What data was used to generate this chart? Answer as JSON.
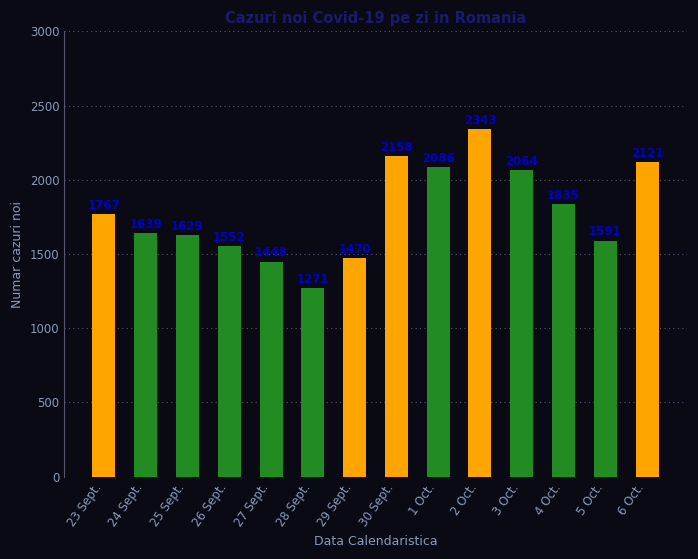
{
  "title": "Cazuri noi Covid-19 pe zi in Romania",
  "xlabel": "Data Calendaristica",
  "ylabel": "Numar cazuri noi",
  "categories": [
    "23 Sept.",
    "24 Sept.",
    "25 Sept.",
    "26 Sept.",
    "27 Sept.",
    "28 Sept.",
    "29 Sept.",
    "30 Sept.",
    "1 Oct.",
    "2 Oct.",
    "3 Oct.",
    "4 Oct.",
    "5 Oct.",
    "6 Oct."
  ],
  "values": [
    1767,
    1639,
    1629,
    1552,
    1448,
    1271,
    1470,
    2158,
    2086,
    2343,
    2064,
    1835,
    1591,
    2121
  ],
  "colors": [
    "#FFA500",
    "#228B22",
    "#228B22",
    "#228B22",
    "#228B22",
    "#228B22",
    "#FFA500",
    "#FFA500",
    "#228B22",
    "#FFA500",
    "#228B22",
    "#228B22",
    "#228B22",
    "#FFA500"
  ],
  "ylim": [
    0,
    3000
  ],
  "yticks": [
    0,
    500,
    1000,
    1500,
    2000,
    2500,
    3000
  ],
  "background_color": "#0a0a14",
  "bar_label_color": "#0000CC",
  "title_color": "#1a1a6e",
  "tick_label_color": "#8899bb",
  "axis_label_color": "#8899bb",
  "grid_color": "#555577",
  "spine_color": "#555577",
  "bar_width": 0.55,
  "label_fontsize": 8.5,
  "title_fontsize": 10.5,
  "axis_label_fontsize": 9,
  "tick_fontsize": 8.5
}
